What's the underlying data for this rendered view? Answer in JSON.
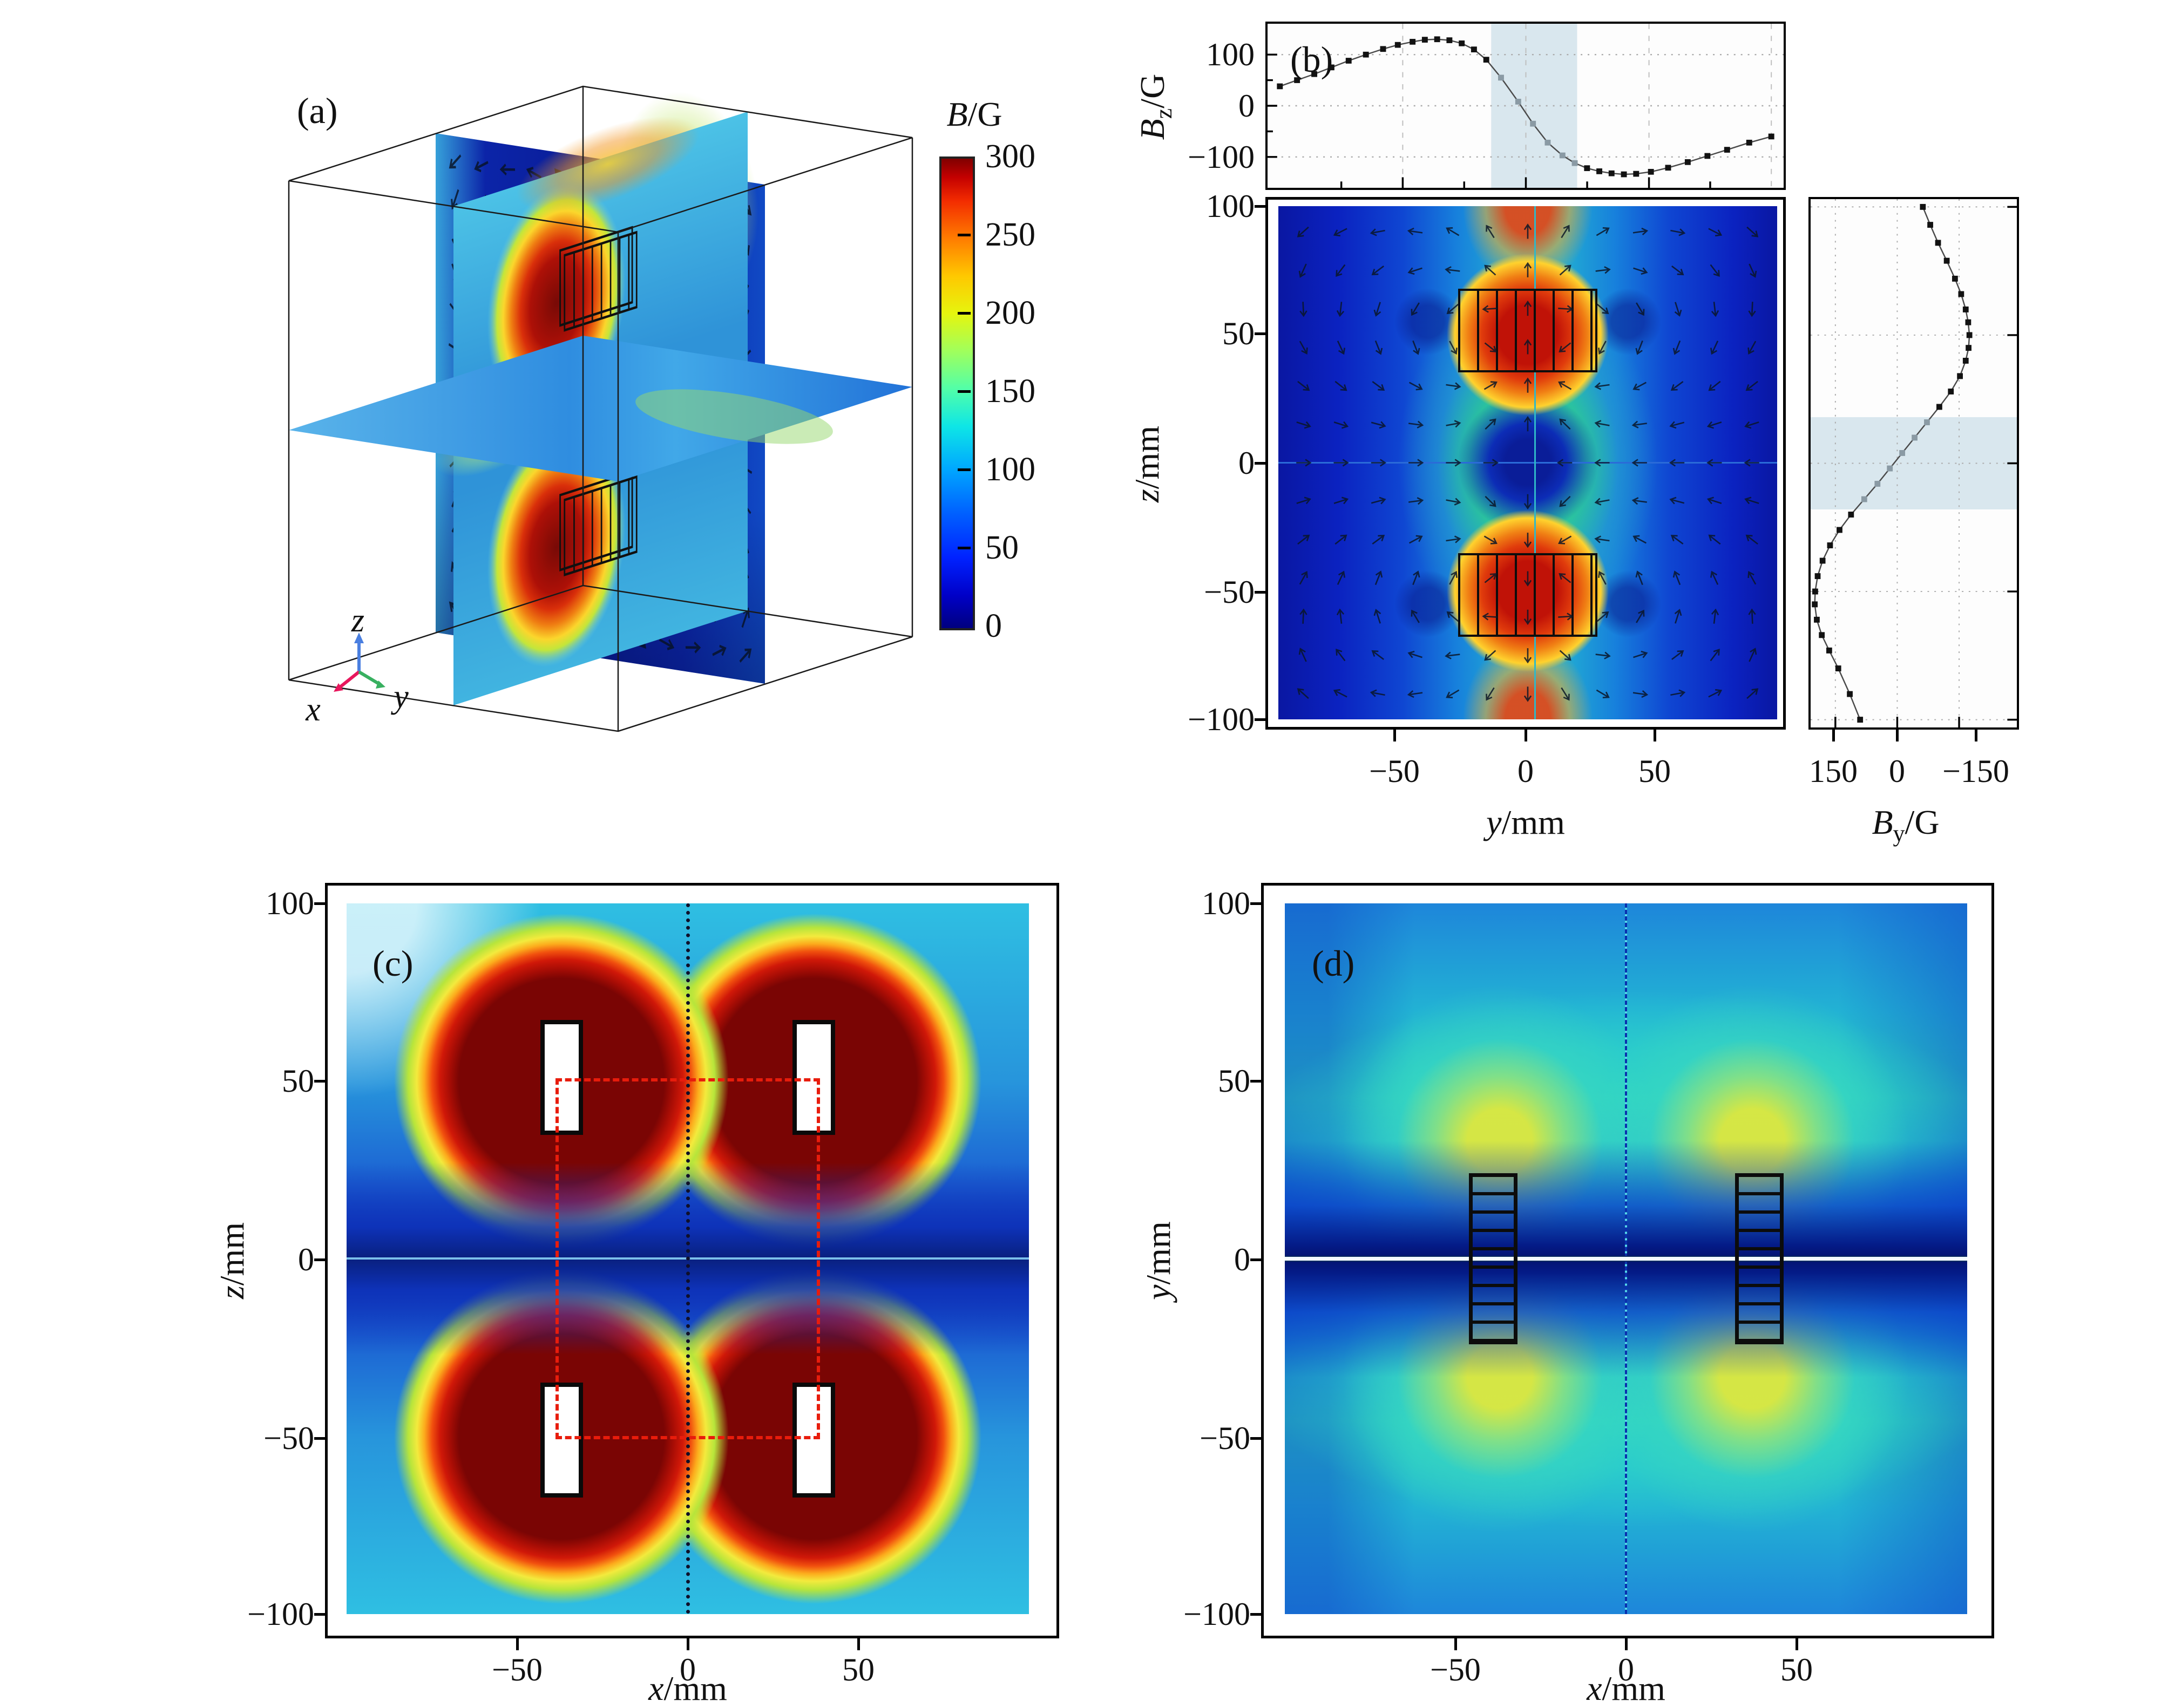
{
  "panel_a": {
    "label": "(a)",
    "colorbar": {
      "title_var": "B",
      "title_unit": "/G",
      "ticks": [
        "300",
        "250",
        "200",
        "150",
        "100",
        "50",
        "0"
      ],
      "min": 0,
      "max": 300,
      "colormap": "jet"
    },
    "triad": {
      "x": "x",
      "y": "y",
      "z": "z"
    }
  },
  "panel_b": {
    "label": "(b)",
    "top_plot": {
      "ylabel_var": "B",
      "ylabel_sub": "z",
      "ylabel_unit": "/G",
      "yticks": [
        "100",
        "0",
        "−100"
      ]
    },
    "main": {
      "ylabel_var": "z",
      "ylabel_unit": "/mm",
      "xlabel_var": "y",
      "xlabel_unit": "/mm",
      "yticks": [
        "100",
        "50",
        "0",
        "−50",
        "−100"
      ],
      "xticks": [
        "−50",
        "0",
        "50"
      ]
    },
    "right_plot": {
      "xlabel_var": "B",
      "xlabel_sub": "y",
      "xlabel_unit": "/G",
      "xticks": [
        "150",
        "0",
        "−150"
      ]
    }
  },
  "panel_c": {
    "label": "(c)",
    "ylabel_var": "z",
    "ylabel_unit": "/mm",
    "xlabel_var": "x",
    "xlabel_unit": "/mm",
    "yticks": [
      "100",
      "50",
      "0",
      "−50",
      "−100"
    ],
    "xticks": [
      "−50",
      "0",
      "50"
    ]
  },
  "panel_d": {
    "label": "(d)",
    "ylabel_var": "y",
    "ylabel_unit": "/mm",
    "xlabel_var": "x",
    "xlabel_unit": "/mm",
    "yticks": [
      "100",
      "50",
      "0",
      "−50",
      "−100"
    ],
    "xticks": [
      "−50",
      "0",
      "50"
    ]
  },
  "chart_data": [
    {
      "type": "3d-slices",
      "id": "panel_a_3d",
      "title": "Simulated magnetic field magnitude on three orthogonal slices of an anti-Helmholtz coil pair",
      "colorbar_label": "B/G",
      "value_range": [
        0,
        300
      ],
      "colorbar_ticks": [
        300,
        250,
        200,
        150,
        100,
        50,
        0
      ],
      "slices": [
        "y-z plane at x=0",
        "x-z plane at y=0",
        "z=0 horizontal plane"
      ],
      "axes": [
        "x",
        "y",
        "z"
      ]
    },
    {
      "type": "line",
      "id": "bz_profile",
      "title": "Bz along y (z=0), panel (b) top margin",
      "xlabel": "y/mm",
      "ylabel": "Bz/G",
      "xlim": [
        -105,
        105
      ],
      "ylim": [
        -150,
        150
      ],
      "grid": true,
      "band_x": [
        -14,
        21
      ],
      "x": [
        -100,
        -93,
        -86,
        -79,
        -72,
        -65,
        -58,
        -52,
        -46,
        -41,
        -36,
        -31,
        -26,
        -21,
        -16,
        -10,
        -3,
        3,
        9,
        15,
        20,
        25,
        30,
        35,
        40,
        45,
        51,
        58,
        66,
        74,
        82,
        91,
        100
      ],
      "y": [
        38,
        50,
        62,
        75,
        88,
        100,
        111,
        119,
        125,
        129,
        130,
        128,
        122,
        110,
        90,
        55,
        8,
        -35,
        -72,
        -97,
        -112,
        -122,
        -128,
        -132,
        -134,
        -133,
        -129,
        -121,
        -110,
        -98,
        -86,
        -72,
        -60
      ]
    },
    {
      "type": "line",
      "id": "by_profile",
      "title": "By along z (y=0), panel (b) right margin",
      "xlabel": "By/G",
      "ylabel": "z/mm",
      "x_axis_inverted": true,
      "xlim": [
        210,
        -290
      ],
      "ylim": [
        -100,
        100
      ],
      "grid": true,
      "band_z": [
        -18,
        18
      ],
      "z": [
        100,
        93,
        86,
        79,
        72,
        66,
        60,
        55,
        50,
        45,
        40,
        34,
        28,
        22,
        16,
        10,
        4,
        -2,
        -8,
        -14,
        -20,
        -26,
        -32,
        -38,
        -44,
        -50,
        -55,
        -61,
        -67,
        -73,
        -80,
        -90,
        -100
      ],
      "by": [
        -62,
        -80,
        -99,
        -120,
        -140,
        -155,
        -166,
        -172,
        -175,
        -173,
        -166,
        -152,
        -130,
        -102,
        -72,
        -42,
        -12,
        18,
        48,
        80,
        112,
        140,
        163,
        181,
        193,
        199,
        200,
        195,
        183,
        165,
        143,
        115,
        90
      ]
    },
    {
      "type": "heatmap",
      "id": "b_main",
      "xlabel": "y/mm",
      "ylabel": "z/mm",
      "xlim": [
        -100,
        100
      ],
      "ylim": [
        -100,
        100
      ],
      "colormap": "jet",
      "value_label": "B/G",
      "value_range": [
        0,
        300
      ],
      "features": {
        "hot_spots": [
          {
            "y": 0,
            "z": 51
          },
          {
            "y": 0,
            "z": -51
          }
        ],
        "zero_field_center": {
          "y": 0,
          "z": 0
        },
        "field_nulls": [
          {
            "y": -40,
            "z": 55
          },
          {
            "y": 40,
            "z": 55
          },
          {
            "y": -40,
            "z": -55
          },
          {
            "y": 40,
            "z": -55
          }
        ],
        "coil_outlines": [
          {
            "y": [
              -27,
              27
            ],
            "z": [
              36,
              67
            ]
          },
          {
            "y": [
              -27,
              27
            ],
            "z": [
              -67,
              -36
            ]
          }
        ],
        "quiver": "B-field direction arrows"
      }
    },
    {
      "type": "heatmap",
      "id": "panel_c_map",
      "xlabel": "x/mm",
      "ylabel": "z/mm",
      "xlim": [
        -100,
        100
      ],
      "ylim": [
        -100,
        100
      ],
      "colormap": "jet",
      "features": {
        "hot_blobs": [
          {
            "x": -37,
            "z": 50
          },
          {
            "x": 37,
            "z": 50
          },
          {
            "x": -37,
            "z": -50
          },
          {
            "x": 37,
            "z": -50
          }
        ],
        "white_coil_cores": [
          {
            "x": [
              -42,
              -32
            ],
            "z": [
              36,
              66
            ]
          },
          {
            "x": [
              32,
              42
            ],
            "z": [
              36,
              66
            ]
          },
          {
            "x": [
              -42,
              -32
            ],
            "z": [
              -66,
              -36
            ]
          },
          {
            "x": [
              32,
              42
            ],
            "z": [
              -66,
              -36
            ]
          }
        ],
        "red_dashed_rect": {
          "x": [
            -38,
            38
          ],
          "z": [
            -50,
            50
          ]
        },
        "dotted_sample_line_x": 0,
        "low_field_band_z": 0
      }
    },
    {
      "type": "heatmap",
      "id": "panel_d_map",
      "xlabel": "x/mm",
      "ylabel": "y/mm",
      "xlim": [
        -100,
        100
      ],
      "ylim": [
        -100,
        100
      ],
      "colormap": "jet",
      "features": {
        "bright_blobs": [
          {
            "x": -37,
            "y": 33
          },
          {
            "x": 37,
            "y": 33
          },
          {
            "x": -37,
            "y": -33
          },
          {
            "x": 37,
            "y": -33
          }
        ],
        "ladder_coils": [
          {
            "x": [
              -45,
              -33
            ],
            "y": [
              -23,
              23
            ]
          },
          {
            "x": [
              33,
              45
            ],
            "y": [
              -23,
              23
            ]
          }
        ],
        "bright_line_y": 0,
        "dark_band_y": [
          -20,
          20
        ],
        "sample_line_x": 0
      }
    }
  ]
}
